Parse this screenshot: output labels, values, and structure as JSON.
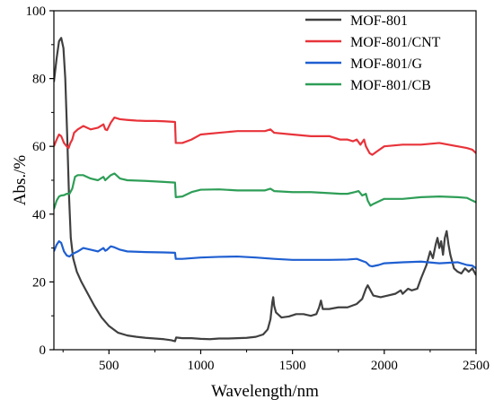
{
  "chart_data": {
    "type": "line",
    "xlabel": "Wavelength/nm",
    "ylabel": "Abs./%",
    "xlim": [
      200,
      2500
    ],
    "ylim": [
      0,
      100
    ],
    "x_ticks": [
      500,
      1000,
      1500,
      2000,
      2500
    ],
    "y_ticks": [
      0,
      20,
      40,
      60,
      80,
      100
    ],
    "legend_position": "top-right",
    "series": [
      {
        "name": "MOF-801",
        "color": "#404040",
        "points": [
          [
            200,
            79
          ],
          [
            215,
            86
          ],
          [
            228,
            91
          ],
          [
            240,
            92
          ],
          [
            252,
            89
          ],
          [
            262,
            80
          ],
          [
            272,
            64
          ],
          [
            282,
            46
          ],
          [
            292,
            33
          ],
          [
            305,
            27
          ],
          [
            325,
            23
          ],
          [
            350,
            20
          ],
          [
            380,
            17
          ],
          [
            420,
            13
          ],
          [
            460,
            9.5
          ],
          [
            500,
            7
          ],
          [
            550,
            5
          ],
          [
            600,
            4.2
          ],
          [
            650,
            3.8
          ],
          [
            700,
            3.5
          ],
          [
            750,
            3.3
          ],
          [
            800,
            3.1
          ],
          [
            840,
            2.8
          ],
          [
            860,
            2.5
          ],
          [
            866,
            3.6
          ],
          [
            900,
            3.4
          ],
          [
            950,
            3.4
          ],
          [
            1000,
            3.2
          ],
          [
            1050,
            3.1
          ],
          [
            1100,
            3.3
          ],
          [
            1150,
            3.3
          ],
          [
            1200,
            3.4
          ],
          [
            1250,
            3.5
          ],
          [
            1300,
            3.8
          ],
          [
            1340,
            4.5
          ],
          [
            1365,
            6
          ],
          [
            1380,
            9
          ],
          [
            1390,
            14
          ],
          [
            1395,
            15.5
          ],
          [
            1400,
            13
          ],
          [
            1410,
            11
          ],
          [
            1440,
            9.5
          ],
          [
            1480,
            9.8
          ],
          [
            1520,
            10.5
          ],
          [
            1560,
            10.5
          ],
          [
            1600,
            10
          ],
          [
            1630,
            10.5
          ],
          [
            1645,
            12.5
          ],
          [
            1655,
            14.5
          ],
          [
            1665,
            12
          ],
          [
            1700,
            12
          ],
          [
            1750,
            12.5
          ],
          [
            1800,
            12.5
          ],
          [
            1850,
            13.5
          ],
          [
            1880,
            15
          ],
          [
            1900,
            18
          ],
          [
            1910,
            19
          ],
          [
            1920,
            18
          ],
          [
            1940,
            16
          ],
          [
            1980,
            15.5
          ],
          [
            2020,
            16
          ],
          [
            2060,
            16.5
          ],
          [
            2090,
            17.5
          ],
          [
            2100,
            16.5
          ],
          [
            2130,
            18
          ],
          [
            2150,
            17.5
          ],
          [
            2180,
            18
          ],
          [
            2200,
            21
          ],
          [
            2230,
            25
          ],
          [
            2250,
            29
          ],
          [
            2265,
            27
          ],
          [
            2280,
            31
          ],
          [
            2290,
            33
          ],
          [
            2300,
            30
          ],
          [
            2310,
            32
          ],
          [
            2320,
            28
          ],
          [
            2330,
            33
          ],
          [
            2340,
            35
          ],
          [
            2350,
            31
          ],
          [
            2360,
            28
          ],
          [
            2380,
            24
          ],
          [
            2400,
            23
          ],
          [
            2420,
            22.5
          ],
          [
            2440,
            24
          ],
          [
            2460,
            23
          ],
          [
            2480,
            24
          ],
          [
            2500,
            22
          ]
        ]
      },
      {
        "name": "MOF-801/CNT",
        "color": "#e8333a",
        "points": [
          [
            200,
            60
          ],
          [
            215,
            62
          ],
          [
            228,
            63.5
          ],
          [
            240,
            63
          ],
          [
            255,
            61
          ],
          [
            270,
            60
          ],
          [
            280,
            59.5
          ],
          [
            290,
            61
          ],
          [
            300,
            62
          ],
          [
            310,
            64
          ],
          [
            330,
            65
          ],
          [
            360,
            66
          ],
          [
            400,
            65
          ],
          [
            440,
            65.5
          ],
          [
            470,
            66.5
          ],
          [
            480,
            65
          ],
          [
            490,
            64.8
          ],
          [
            510,
            67
          ],
          [
            530,
            68.5
          ],
          [
            560,
            68
          ],
          [
            600,
            67.8
          ],
          [
            650,
            67.6
          ],
          [
            700,
            67.5
          ],
          [
            750,
            67.5
          ],
          [
            800,
            67.4
          ],
          [
            860,
            67.2
          ],
          [
            864,
            61
          ],
          [
            900,
            61
          ],
          [
            950,
            62
          ],
          [
            1000,
            63.5
          ],
          [
            1100,
            64
          ],
          [
            1200,
            64.5
          ],
          [
            1300,
            64.5
          ],
          [
            1350,
            64.5
          ],
          [
            1380,
            65
          ],
          [
            1400,
            64
          ],
          [
            1500,
            63.5
          ],
          [
            1600,
            63
          ],
          [
            1700,
            63
          ],
          [
            1760,
            62
          ],
          [
            1800,
            62
          ],
          [
            1830,
            61.5
          ],
          [
            1850,
            62
          ],
          [
            1870,
            60.5
          ],
          [
            1890,
            62
          ],
          [
            1900,
            60
          ],
          [
            1920,
            58
          ],
          [
            1935,
            57.5
          ],
          [
            1960,
            58.5
          ],
          [
            2000,
            60
          ],
          [
            2100,
            60.5
          ],
          [
            2200,
            60.5
          ],
          [
            2300,
            61
          ],
          [
            2400,
            60
          ],
          [
            2450,
            59.5
          ],
          [
            2480,
            59
          ],
          [
            2500,
            58
          ]
        ]
      },
      {
        "name": "MOF-801/G",
        "color": "#1f5fd1",
        "points": [
          [
            200,
            29
          ],
          [
            215,
            31
          ],
          [
            228,
            32
          ],
          [
            240,
            31.5
          ],
          [
            255,
            29
          ],
          [
            270,
            27.8
          ],
          [
            285,
            27.5
          ],
          [
            300,
            28.2
          ],
          [
            330,
            29
          ],
          [
            360,
            30
          ],
          [
            400,
            29.5
          ],
          [
            440,
            29
          ],
          [
            470,
            30
          ],
          [
            480,
            29.2
          ],
          [
            490,
            29.5
          ],
          [
            510,
            30.5
          ],
          [
            530,
            30.2
          ],
          [
            560,
            29.5
          ],
          [
            600,
            29
          ],
          [
            700,
            28.8
          ],
          [
            800,
            28.7
          ],
          [
            860,
            28.6
          ],
          [
            864,
            26.8
          ],
          [
            900,
            26.8
          ],
          [
            1000,
            27.2
          ],
          [
            1100,
            27.4
          ],
          [
            1200,
            27.5
          ],
          [
            1300,
            27.2
          ],
          [
            1400,
            26.8
          ],
          [
            1500,
            26.5
          ],
          [
            1600,
            26.5
          ],
          [
            1700,
            26.5
          ],
          [
            1800,
            26.6
          ],
          [
            1850,
            26.8
          ],
          [
            1900,
            25.8
          ],
          [
            1920,
            24.8
          ],
          [
            1935,
            24.6
          ],
          [
            1970,
            25
          ],
          [
            2000,
            25.5
          ],
          [
            2100,
            25.8
          ],
          [
            2200,
            26
          ],
          [
            2300,
            25.5
          ],
          [
            2400,
            25.8
          ],
          [
            2450,
            25
          ],
          [
            2480,
            24.8
          ],
          [
            2500,
            24
          ]
        ]
      },
      {
        "name": "MOF-801/CB",
        "color": "#2e9e57",
        "points": [
          [
            200,
            41.5
          ],
          [
            215,
            44
          ],
          [
            228,
            45.2
          ],
          [
            240,
            45.5
          ],
          [
            255,
            45.6
          ],
          [
            270,
            46
          ],
          [
            285,
            46
          ],
          [
            300,
            47.5
          ],
          [
            315,
            51
          ],
          [
            330,
            51.5
          ],
          [
            360,
            51.5
          ],
          [
            400,
            50.5
          ],
          [
            440,
            50
          ],
          [
            470,
            51
          ],
          [
            480,
            50
          ],
          [
            490,
            50.5
          ],
          [
            510,
            51.5
          ],
          [
            530,
            52
          ],
          [
            560,
            50.5
          ],
          [
            600,
            50
          ],
          [
            700,
            49.8
          ],
          [
            800,
            49.5
          ],
          [
            860,
            49.3
          ],
          [
            864,
            45
          ],
          [
            900,
            45.2
          ],
          [
            950,
            46.5
          ],
          [
            1000,
            47.2
          ],
          [
            1100,
            47.3
          ],
          [
            1200,
            47
          ],
          [
            1300,
            47
          ],
          [
            1350,
            47
          ],
          [
            1380,
            47.5
          ],
          [
            1400,
            46.8
          ],
          [
            1500,
            46.5
          ],
          [
            1600,
            46.5
          ],
          [
            1700,
            46.2
          ],
          [
            1760,
            46
          ],
          [
            1800,
            46
          ],
          [
            1840,
            46.5
          ],
          [
            1860,
            46.8
          ],
          [
            1880,
            45.5
          ],
          [
            1900,
            46
          ],
          [
            1910,
            44
          ],
          [
            1925,
            42.5
          ],
          [
            1940,
            43
          ],
          [
            1980,
            44
          ],
          [
            2000,
            44.5
          ],
          [
            2100,
            44.5
          ],
          [
            2200,
            45
          ],
          [
            2300,
            45.2
          ],
          [
            2400,
            45
          ],
          [
            2450,
            44.8
          ],
          [
            2480,
            44
          ],
          [
            2500,
            43.5
          ]
        ]
      }
    ]
  }
}
